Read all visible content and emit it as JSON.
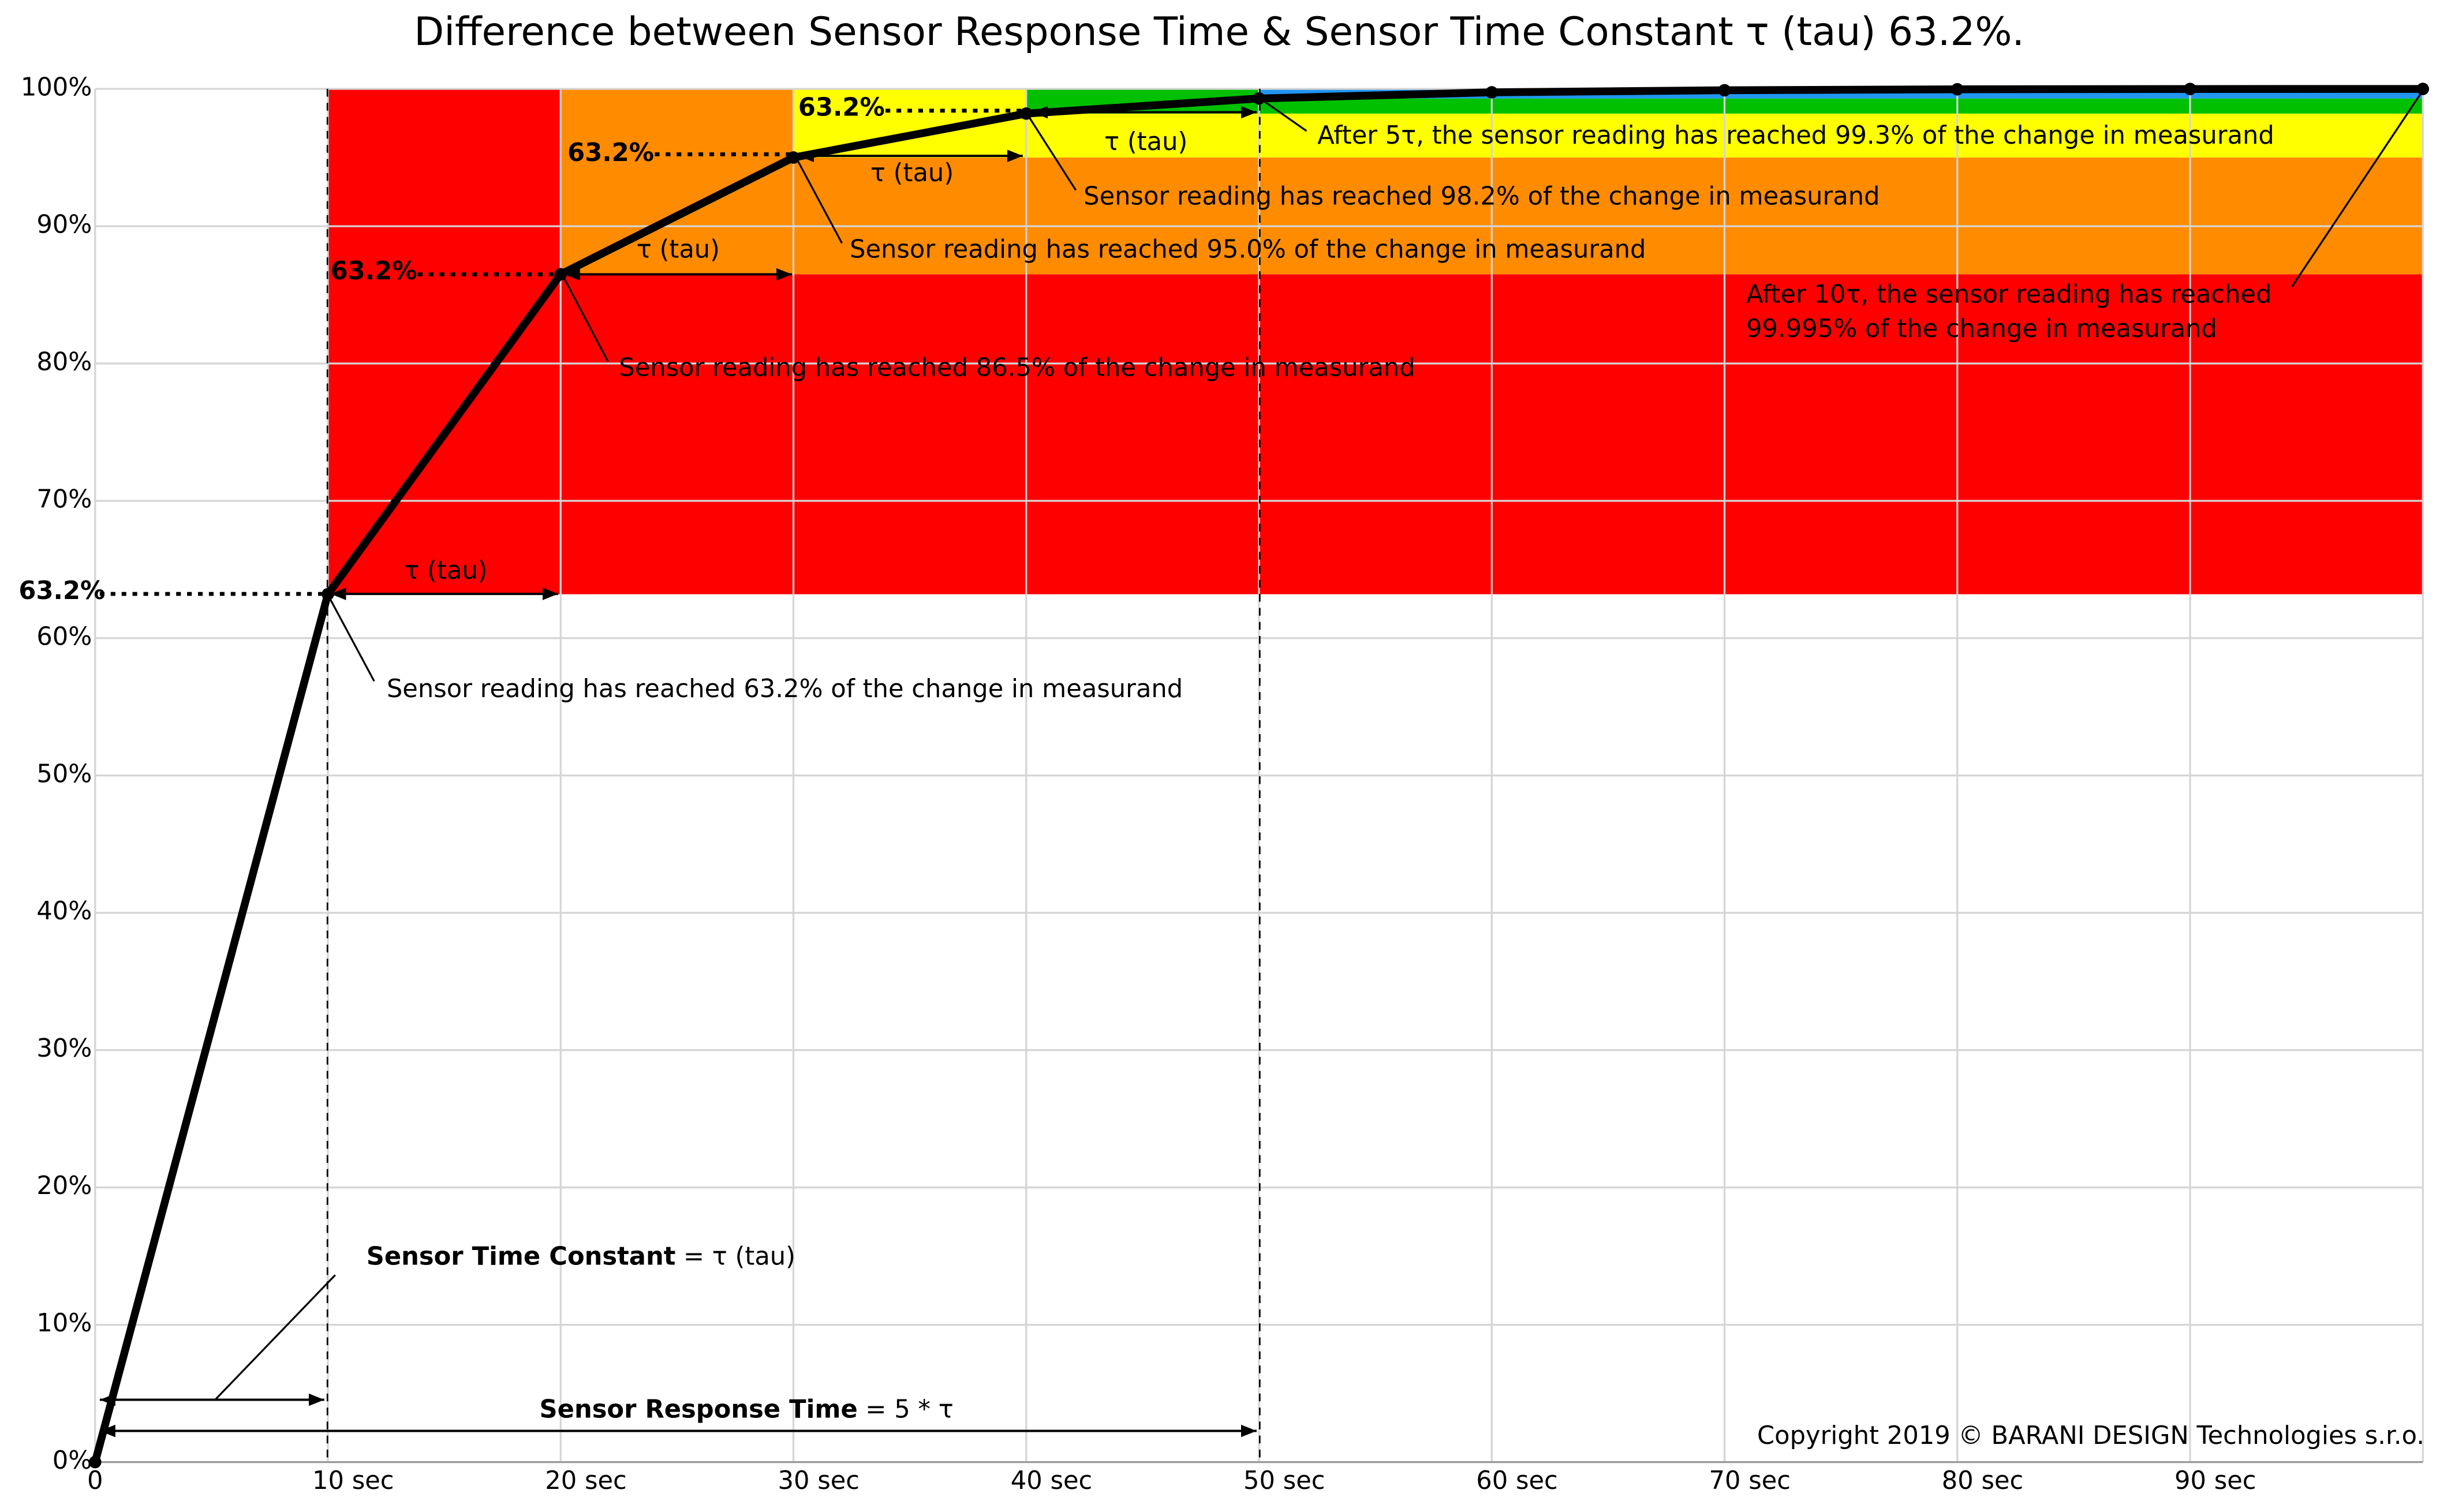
{
  "chart_data": {
    "type": "line",
    "title": "Difference between Sensor Response Time & Sensor Time Constant τ (tau) 63.2%.",
    "x": [
      0,
      10,
      20,
      30,
      40,
      50,
      60,
      70,
      80,
      90,
      100
    ],
    "values": [
      0,
      63.2,
      86.5,
      95.0,
      98.2,
      99.3,
      99.75,
      99.9,
      99.97,
      99.99,
      99.995
    ],
    "color": "#000000",
    "xlim": [
      0,
      100
    ],
    "ylim": [
      0,
      100
    ],
    "xticks": [
      0,
      {
        "value": 10,
        "label": "10 sec"
      },
      {
        "value": 20,
        "label": "20 sec"
      },
      {
        "value": 30,
        "label": "30 sec"
      },
      {
        "value": 40,
        "label": "40 sec"
      },
      {
        "value": 50,
        "label": "50 sec"
      },
      {
        "value": 60,
        "label": "60 sec"
      },
      {
        "value": 70,
        "label": "70 sec"
      },
      {
        "value": 80,
        "label": "80 sec"
      },
      {
        "value": 90,
        "label": "90 sec"
      }
    ],
    "yticks": [
      {
        "value": 0,
        "label": "0%"
      },
      {
        "value": 10,
        "label": "10%"
      },
      {
        "value": 20,
        "label": "20%"
      },
      {
        "value": 30,
        "label": "30%"
      },
      {
        "value": 40,
        "label": "40%"
      },
      {
        "value": 50,
        "label": "50%"
      },
      {
        "value": 60,
        "label": "60%"
      },
      {
        "value": 70,
        "label": "70%"
      },
      {
        "value": 80,
        "label": "80%"
      },
      {
        "value": 90,
        "label": "90%"
      },
      {
        "value": 100,
        "label": "100%"
      }
    ],
    "grid": true,
    "band_colors": [
      "#ff0000",
      "#ff8c00",
      "#ffff00",
      "#00c000",
      "#2196f3"
    ],
    "level_labels": [
      "63.2%",
      "63.2%",
      "63.2%",
      "63.2%"
    ],
    "tau_labels": [
      "τ (tau)",
      "τ (tau)",
      "τ (tau)",
      "τ (tau)"
    ],
    "annotations": [
      "Sensor reading has reached 63.2% of the change in measurand",
      "Sensor reading has reached 86.5% of the change in measurand",
      "Sensor reading has reached 95.0% of the change in measurand",
      "Sensor reading has reached 98.2% of the change in measurand",
      "After 5τ, the sensor reading has reached 99.3% of the change in measurand",
      "After 10τ, the sensor reading has reached",
      "99.995% of the change in measurand"
    ],
    "time_constant_label": {
      "bold": "Sensor Time Constant",
      "text": "= τ (tau)"
    },
    "response_time_label": {
      "bold": "Sensor Response Time",
      "text": "= 5 * τ"
    },
    "copyright": "Copyright 2019 © BARANI DESIGN Technologies s.r.o."
  }
}
